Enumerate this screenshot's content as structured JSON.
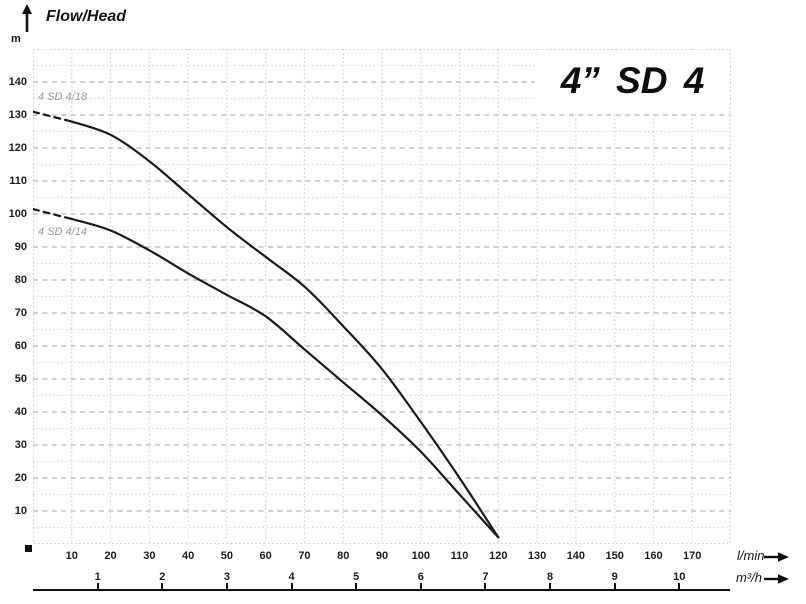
{
  "header": {
    "axis_label": "Flow/Head",
    "axis_unit": "m"
  },
  "chart_data": {
    "type": "line",
    "title": "4” SD 4",
    "legend_position": "inline-labels",
    "grid": {
      "border_on": true,
      "vertical_step_lmin": 10,
      "horizontal_major_m": 10,
      "horizontal_minor_m": 5
    },
    "y_axis": {
      "label": "Flow/Head",
      "unit": "m",
      "range": [
        0,
        150
      ],
      "ticks": [
        10,
        20,
        30,
        40,
        50,
        60,
        70,
        80,
        90,
        100,
        110,
        120,
        130,
        140
      ]
    },
    "x_axes": [
      {
        "label": "l/min",
        "range": [
          0,
          180
        ],
        "ticks": [
          10,
          20,
          30,
          40,
          50,
          60,
          70,
          80,
          90,
          100,
          110,
          120,
          130,
          140,
          150,
          160,
          170
        ],
        "grid_step": 10
      },
      {
        "label": "m³/h",
        "ticks": [
          1,
          2,
          3,
          4,
          5,
          6,
          7,
          8,
          9,
          10
        ],
        "lmin_per_unit": 16.667
      }
    ],
    "series": [
      {
        "name": "4 SD 4/18",
        "dashed_start": true,
        "q_lmin": [
          0,
          10,
          20,
          30,
          40,
          50,
          60,
          70,
          80,
          90,
          100,
          110,
          120
        ],
        "head_m": [
          131,
          128,
          124,
          116,
          106,
          96,
          87,
          78,
          66,
          53,
          37,
          20,
          2
        ],
        "label_q": 1.3,
        "label_h": 135.5
      },
      {
        "name": "4 SD 4/14",
        "dashed_start": true,
        "q_lmin": [
          0,
          10,
          20,
          30,
          40,
          50,
          60,
          70,
          80,
          90,
          100,
          110,
          120
        ],
        "head_m": [
          101.5,
          98.5,
          95,
          89,
          82,
          75.5,
          69,
          59,
          49,
          39,
          28,
          15,
          2
        ],
        "label_q": 1.3,
        "label_h": 94.5
      }
    ]
  },
  "colors": {
    "curve": "#1a1a1a",
    "grid_major": "#b3b3b3",
    "grid_minor": "#d9d9d9",
    "grid_vertical": "#cccccc",
    "border": "#cccccc",
    "curve_label": "#9a9a9a",
    "text": "#141414"
  }
}
